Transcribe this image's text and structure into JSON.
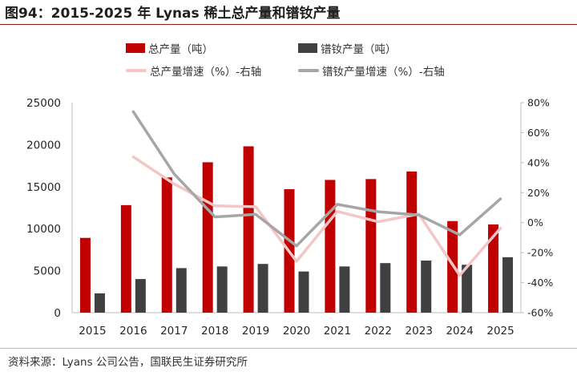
{
  "header": {
    "title": "图94：2015-2025 年 Lynas 稀土总产量和镨钕产量"
  },
  "legend": {
    "total_output": "总产量（吨）",
    "ndpr_output": "镨钕产量（吨）",
    "total_growth": "总产量增速（%）-右轴",
    "ndpr_growth": "镨钕产量增速（%）-右轴"
  },
  "footer": {
    "source": "资料来源：Lyans 公司公告，国联民生证券研究所"
  },
  "colors": {
    "total_bar": "#c00000",
    "ndpr_bar": "#404040",
    "total_growth_line": "#f4c6c6",
    "ndpr_growth_line": "#a6a6a6"
  },
  "chart_data": {
    "type": "bar",
    "categories": [
      "2015",
      "2016",
      "2017",
      "2018",
      "2019",
      "2020",
      "2021",
      "2022",
      "2023",
      "2024",
      "2025"
    ],
    "series": [
      {
        "name": "总产量（吨）",
        "axis": "left",
        "values": [
          8900,
          12800,
          16100,
          17900,
          19800,
          14700,
          15800,
          15900,
          16800,
          10900,
          10500
        ]
      },
      {
        "name": "镨钕产量（吨）",
        "axis": "left",
        "values": [
          2300,
          4000,
          5300,
          5500,
          5800,
          4900,
          5500,
          5900,
          6200,
          5700,
          6600
        ]
      },
      {
        "name": "总产量增速（%）-右轴",
        "axis": "right",
        "type": "line",
        "values": [
          null,
          43.8,
          25.8,
          11.2,
          10.6,
          -25.8,
          7.5,
          0.6,
          5.7,
          -35.1,
          -3.7
        ]
      },
      {
        "name": "镨钕产量增速（%）-右轴",
        "axis": "right",
        "type": "line",
        "values": [
          null,
          73.9,
          32.5,
          3.8,
          5.5,
          -15.5,
          12.2,
          7.3,
          5.1,
          -8.1,
          15.8
        ]
      }
    ],
    "y_left": {
      "ylim": [
        0,
        25000
      ],
      "ticks": [
        "0",
        "5000",
        "10000",
        "15000",
        "20000",
        "25000"
      ]
    },
    "y_right": {
      "ylim": [
        -60,
        80
      ],
      "ticks": [
        "-60%",
        "-40%",
        "-20%",
        "0%",
        "20%",
        "40%",
        "60%",
        "80%"
      ]
    },
    "grid": false,
    "legend_position": "top"
  }
}
